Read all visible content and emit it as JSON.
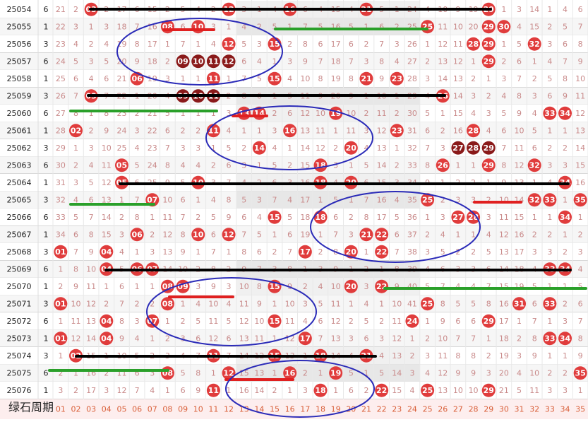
{
  "rows": [
    {
      "period": "25054",
      "tag": 6,
      "cells": [
        21,
        2,
        "03",
        2,
        17,
        6,
        15,
        2,
        5,
        4,
        2,
        "12",
        3,
        1,
        4,
        "16",
        6,
        4,
        15,
        4,
        "21",
        5,
        1,
        24,
        4,
        10,
        9,
        19,
        "29",
        1,
        3,
        14,
        1,
        4,
        6
      ]
    },
    {
      "period": "25055",
      "tag": 1,
      "cells": [
        22,
        3,
        1,
        3,
        18,
        7,
        16,
        "08",
        6,
        "10",
        3,
        1,
        4,
        2,
        5,
        1,
        7,
        5,
        16,
        5,
        1,
        6,
        2,
        25,
        "25",
        11,
        10,
        20,
        "29",
        "30",
        4,
        15,
        2,
        5,
        7
      ]
    },
    {
      "period": "25056",
      "tag": 3,
      "cells": [
        23,
        4,
        2,
        4,
        19,
        8,
        17,
        1,
        7,
        1,
        4,
        "12",
        5,
        3,
        "15",
        2,
        8,
        6,
        17,
        6,
        2,
        7,
        3,
        26,
        1,
        12,
        11,
        "28",
        "29",
        1,
        5,
        "32",
        3,
        6,
        8
      ]
    },
    {
      "period": "25057",
      "tag": 6,
      "cells": [
        24,
        5,
        3,
        5,
        20,
        9,
        18,
        2,
        "09",
        "10",
        "11",
        "12",
        6,
        4,
        1,
        3,
        9,
        7,
        18,
        7,
        3,
        8,
        4,
        27,
        2,
        13,
        12,
        1,
        "29",
        2,
        6,
        1,
        4,
        7,
        9
      ]
    },
    {
      "period": "25058",
      "tag": 1,
      "cells": [
        25,
        6,
        4,
        6,
        21,
        "06",
        19,
        3,
        1,
        1,
        "11",
        1,
        7,
        5,
        "15",
        4,
        10,
        8,
        19,
        8,
        "21",
        9,
        "23",
        28,
        3,
        14,
        13,
        2,
        1,
        3,
        7,
        2,
        5,
        8,
        10
      ]
    },
    {
      "period": "25059",
      "tag": 3,
      "cells": [
        26,
        7,
        "03",
        7,
        22,
        1,
        20,
        4,
        "09",
        "10",
        "11",
        2,
        8,
        6,
        1,
        5,
        11,
        9,
        20,
        9,
        1,
        10,
        1,
        29,
        4,
        "26",
        14,
        3,
        2,
        4,
        8,
        3,
        6,
        9,
        11
      ]
    },
    {
      "period": "25060",
      "tag": 6,
      "cells": [
        27,
        8,
        1,
        8,
        23,
        2,
        21,
        5,
        1,
        1,
        1,
        3,
        "13",
        "14",
        2,
        6,
        12,
        10,
        "19",
        10,
        2,
        11,
        2,
        30,
        5,
        1,
        15,
        4,
        3,
        5,
        9,
        4,
        "33",
        "34",
        12
      ]
    },
    {
      "period": "25061",
      "tag": 1,
      "cells": [
        28,
        "02",
        2,
        9,
        24,
        3,
        22,
        6,
        2,
        2,
        "11",
        4,
        1,
        1,
        3,
        "16",
        13,
        11,
        1,
        11,
        3,
        12,
        "23",
        31,
        6,
        2,
        16,
        "28",
        4,
        6,
        10,
        5,
        1,
        1,
        13
      ]
    },
    {
      "period": "25062",
      "tag": 3,
      "cells": [
        29,
        1,
        3,
        10,
        25,
        4,
        23,
        7,
        3,
        3,
        1,
        5,
        2,
        "14",
        4,
        1,
        14,
        12,
        2,
        "20",
        4,
        13,
        1,
        32,
        7,
        3,
        "27",
        "28",
        "29",
        7,
        11,
        6,
        2,
        2,
        14
      ]
    },
    {
      "period": "25063",
      "tag": 6,
      "cells": [
        30,
        2,
        4,
        11,
        "05",
        5,
        24,
        8,
        4,
        4,
        2,
        6,
        3,
        1,
        5,
        2,
        15,
        "18",
        3,
        1,
        5,
        14,
        2,
        33,
        8,
        "26",
        1,
        1,
        "29",
        8,
        12,
        "32",
        3,
        3,
        15
      ]
    },
    {
      "period": "25064",
      "tag": 1,
      "cells": [
        31,
        3,
        5,
        12,
        "05",
        6,
        25,
        9,
        5,
        "10",
        3,
        7,
        4,
        2,
        6,
        3,
        16,
        "18",
        4,
        "20",
        6,
        15,
        3,
        34,
        9,
        1,
        2,
        2,
        1,
        9,
        13,
        1,
        4,
        "34",
        16
      ]
    },
    {
      "period": "25065",
      "tag": 3,
      "cells": [
        32,
        4,
        6,
        13,
        1,
        7,
        "07",
        10,
        6,
        1,
        4,
        8,
        5,
        3,
        7,
        4,
        17,
        1,
        5,
        1,
        7,
        16,
        4,
        35,
        "25",
        2,
        3,
        3,
        2,
        10,
        14,
        "32",
        "33",
        1,
        "35"
      ]
    },
    {
      "period": "25066",
      "tag": 6,
      "cells": [
        33,
        5,
        7,
        14,
        2,
        8,
        1,
        11,
        7,
        2,
        5,
        9,
        6,
        4,
        "15",
        5,
        18,
        "18",
        6,
        2,
        8,
        17,
        5,
        36,
        1,
        3,
        "27",
        "28",
        3,
        11,
        15,
        1,
        1,
        "34",
        1
      ]
    },
    {
      "period": "25067",
      "tag": 1,
      "cells": [
        34,
        6,
        8,
        15,
        3,
        "06",
        2,
        12,
        8,
        "10",
        6,
        "12",
        7,
        5,
        1,
        6,
        19,
        1,
        7,
        3,
        "21",
        "22",
        6,
        37,
        2,
        4,
        1,
        1,
        4,
        12,
        16,
        2,
        2,
        1,
        2
      ]
    },
    {
      "period": "25068",
      "tag": 3,
      "cells": [
        "01",
        7,
        9,
        "04",
        4,
        1,
        3,
        13,
        9,
        1,
        7,
        1,
        8,
        6,
        2,
        7,
        "17",
        2,
        8,
        "20",
        1,
        "22",
        7,
        38,
        3,
        5,
        2,
        2,
        5,
        13,
        17,
        3,
        3,
        2,
        3
      ]
    },
    {
      "period": "25069",
      "tag": 6,
      "cells": [
        1,
        8,
        10,
        "04",
        5,
        "06",
        "07",
        14,
        10,
        2,
        8,
        2,
        9,
        7,
        3,
        8,
        1,
        3,
        9,
        1,
        2,
        1,
        8,
        39,
        4,
        6,
        3,
        3,
        6,
        14,
        18,
        4,
        "33",
        "34",
        4
      ]
    },
    {
      "period": "25070",
      "tag": 1,
      "cells": [
        2,
        9,
        11,
        1,
        6,
        1,
        1,
        "08",
        "09",
        3,
        9,
        3,
        10,
        8,
        "15",
        9,
        2,
        4,
        10,
        "20",
        3,
        "22",
        9,
        40,
        5,
        7,
        4,
        4,
        7,
        15,
        19,
        5,
        1,
        1,
        5
      ]
    },
    {
      "period": "25071",
      "tag": 3,
      "cells": [
        "01",
        10,
        12,
        2,
        7,
        2,
        2,
        "08",
        1,
        4,
        10,
        4,
        11,
        9,
        1,
        10,
        3,
        5,
        11,
        1,
        4,
        1,
        10,
        41,
        "25",
        8,
        5,
        5,
        8,
        16,
        "31",
        6,
        "33",
        2,
        6
      ]
    },
    {
      "period": "25072",
      "tag": 6,
      "cells": [
        1,
        11,
        13,
        "04",
        8,
        3,
        "07",
        1,
        2,
        5,
        11,
        5,
        12,
        10,
        "15",
        11,
        4,
        6,
        12,
        2,
        5,
        2,
        11,
        "24",
        1,
        9,
        6,
        6,
        "29",
        17,
        1,
        7,
        1,
        3,
        7
      ]
    },
    {
      "period": "25073",
      "tag": 1,
      "cells": [
        "01",
        12,
        14,
        "04",
        9,
        4,
        1,
        2,
        3,
        6,
        12,
        6,
        13,
        11,
        1,
        12,
        "17",
        7,
        13,
        3,
        6,
        3,
        12,
        1,
        2,
        10,
        7,
        7,
        1,
        18,
        2,
        8,
        "33",
        "34",
        8
      ]
    },
    {
      "period": "25074",
      "tag": 3,
      "cells": [
        1,
        "02",
        15,
        1,
        10,
        5,
        2,
        3,
        4,
        7,
        "11",
        7,
        14,
        12,
        "15",
        13,
        1,
        "18",
        14,
        4,
        "21",
        4,
        13,
        2,
        3,
        11,
        8,
        8,
        2,
        19,
        3,
        9,
        1,
        1,
        9
      ]
    },
    {
      "period": "25075",
      "tag": 6,
      "cells": [
        2,
        1,
        16,
        2,
        11,
        6,
        3,
        "08",
        5,
        8,
        1,
        "12",
        15,
        13,
        1,
        "16",
        2,
        1,
        "19",
        5,
        1,
        5,
        14,
        3,
        4,
        12,
        9,
        9,
        3,
        20,
        4,
        10,
        2,
        2,
        "35"
      ]
    },
    {
      "period": "25076",
      "tag": 1,
      "cells": [
        3,
        2,
        17,
        3,
        12,
        7,
        4,
        1,
        6,
        9,
        "11",
        1,
        16,
        14,
        2,
        1,
        3,
        "18",
        1,
        6,
        2,
        "22",
        15,
        4,
        "25",
        13,
        10,
        10,
        "29",
        21,
        5,
        11,
        3,
        3,
        1
      ]
    }
  ],
  "footer": {
    "label": "绿石周期",
    "numbers": [
      "01",
      "02",
      "03",
      "04",
      "05",
      "06",
      "07",
      "08",
      "09",
      "10",
      "11",
      "12",
      "13",
      "14",
      "15",
      "16",
      "17",
      "18",
      "19",
      "20",
      "21",
      "22",
      "23",
      "24",
      "25",
      "26",
      "27",
      "28",
      "29",
      "30",
      "31",
      "32",
      "33",
      "34",
      "35"
    ]
  }
}
